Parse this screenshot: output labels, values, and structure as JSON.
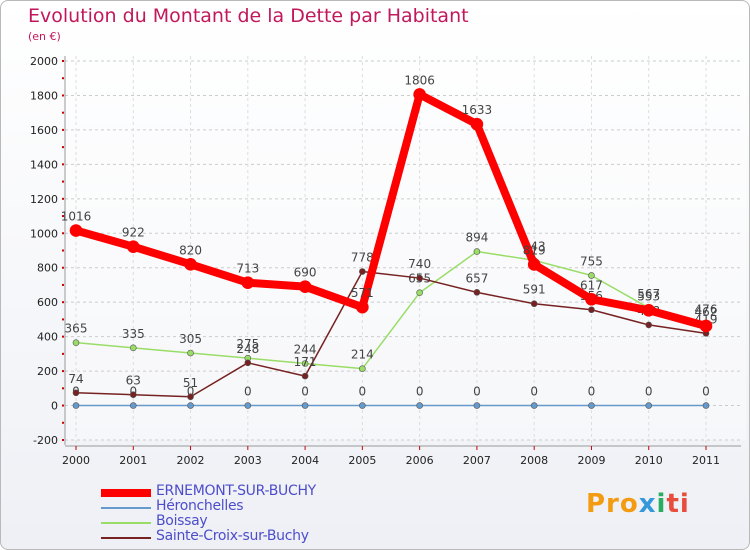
{
  "chart_data": {
    "type": "line",
    "title": "Evolution du Montant de la Dette par Habitant",
    "subtitle": "(en €)",
    "xlabel": "",
    "ylabel": "",
    "ylim": [
      -200,
      2000
    ],
    "yticks": [
      -200,
      0,
      200,
      400,
      600,
      800,
      1000,
      1200,
      1400,
      1600,
      1800,
      2000
    ],
    "categories": [
      "2000",
      "2001",
      "2002",
      "2003",
      "2004",
      "2005",
      "2006",
      "2007",
      "2008",
      "2009",
      "2010",
      "2011"
    ],
    "series": [
      {
        "name": "ERNEMONT-SUR-BUCHY",
        "color": "#ff0000",
        "values": [
          1016,
          922,
          820,
          713,
          690,
          571,
          1806,
          1633,
          819,
          617,
          553,
          462
        ]
      },
      {
        "name": "Héronchelles",
        "color": "#6699cc",
        "values": [
          0,
          0,
          0,
          0,
          0,
          0,
          0,
          0,
          0,
          0,
          0,
          0
        ]
      },
      {
        "name": "Boissay",
        "color": "#99dd66",
        "values": [
          365,
          335,
          305,
          275,
          244,
          214,
          655,
          894,
          843,
          755,
          567,
          476
        ]
      },
      {
        "name": "Sainte-Croix-sur-Buchy",
        "color": "#772222",
        "values": [
          74,
          63,
          51,
          248,
          171,
          778,
          740,
          657,
          591,
          556,
          468,
          419
        ]
      }
    ]
  },
  "brand": {
    "p1": "Pro",
    "p2": "x",
    "p3": "i",
    "p4": "ti"
  }
}
